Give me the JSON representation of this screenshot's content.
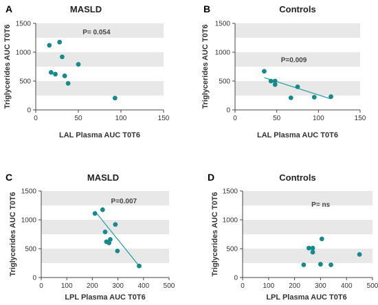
{
  "colors": {
    "point": "#168a8a",
    "fit_line": "#2aa3a3",
    "band": "#e8e8e8"
  },
  "chart_data": [
    {
      "type": "scatter",
      "panel": "A",
      "title": "MASLD",
      "xlabel": "LAL Plasma AUC T0T6",
      "ylabel": "Triglycerides AUC T0T6",
      "xlim": [
        0,
        150
      ],
      "ylim": [
        0,
        1500
      ],
      "xticks": [
        "0",
        "50",
        "100",
        "150"
      ],
      "yticks": [
        "0",
        "500",
        "1000",
        "1500"
      ],
      "bands": [
        [
          250,
          500
        ],
        [
          750,
          1000
        ],
        [
          1250,
          1500
        ]
      ],
      "annotation": "P= 0.054",
      "annotation_at": [
        55,
        1350
      ],
      "points": [
        [
          16,
          1120
        ],
        [
          28,
          1175
        ],
        [
          31,
          920
        ],
        [
          18,
          650
        ],
        [
          23,
          620
        ],
        [
          34,
          590
        ],
        [
          38,
          460
        ],
        [
          50,
          790
        ],
        [
          93,
          205
        ]
      ],
      "fit": null
    },
    {
      "type": "scatter",
      "panel": "B",
      "title": "Controls",
      "xlabel": "LAL Plasma AUC T0T6",
      "ylabel": "Triglycerides AUC T0T6",
      "xlim": [
        0,
        150
      ],
      "ylim": [
        0,
        1500
      ],
      "xticks": [
        "0",
        "50",
        "100",
        "150"
      ],
      "yticks": [
        "0",
        "500",
        "1000",
        "1500"
      ],
      "bands": [
        [
          250,
          500
        ],
        [
          750,
          1000
        ],
        [
          1250,
          1500
        ]
      ],
      "annotation": "P=0.009",
      "annotation_at": [
        55,
        870
      ],
      "points": [
        [
          35,
          670
        ],
        [
          43,
          500
        ],
        [
          48,
          500
        ],
        [
          48,
          440
        ],
        [
          67,
          210
        ],
        [
          75,
          400
        ],
        [
          95,
          220
        ],
        [
          115,
          230
        ]
      ],
      "fit": [
        [
          35,
          560
        ],
        [
          115,
          190
        ]
      ]
    },
    {
      "type": "scatter",
      "panel": "C",
      "title": "MASLD",
      "xlabel": "LPL Plasma AUC T0T6",
      "ylabel": "Triglycerides AUC T0T6",
      "xlim": [
        0,
        500
      ],
      "ylim": [
        0,
        1500
      ],
      "xticks": [
        "0",
        "100",
        "200",
        "300",
        "400",
        "500"
      ],
      "yticks": [
        "0",
        "500",
        "1000",
        "1500"
      ],
      "bands": [
        [
          250,
          500
        ],
        [
          750,
          1000
        ],
        [
          1250,
          1500
        ]
      ],
      "annotation": "P=0.007",
      "annotation_at": [
        273,
        1330
      ],
      "points": [
        [
          210,
          1110
        ],
        [
          240,
          1175
        ],
        [
          250,
          790
        ],
        [
          255,
          620
        ],
        [
          265,
          600
        ],
        [
          270,
          660
        ],
        [
          290,
          920
        ],
        [
          298,
          460
        ],
        [
          383,
          200
        ]
      ],
      "fit": [
        [
          210,
          1150
        ],
        [
          383,
          200
        ]
      ]
    },
    {
      "type": "scatter",
      "panel": "D",
      "title": "Controls",
      "xlabel": "LPL Plasma AUC T0T6",
      "ylabel": "Triglycerides AUC T0T6",
      "xlim": [
        0,
        500
      ],
      "ylim": [
        0,
        1500
      ],
      "xticks": [
        "0",
        "100",
        "200",
        "300",
        "400",
        "500"
      ],
      "yticks": [
        "0",
        "500",
        "1000",
        "1500"
      ],
      "bands": [
        [
          250,
          500
        ],
        [
          750,
          1000
        ],
        [
          1250,
          1500
        ]
      ],
      "annotation": "P= ns",
      "annotation_at": [
        265,
        1270
      ],
      "points": [
        [
          235,
          220
        ],
        [
          255,
          510
        ],
        [
          270,
          510
        ],
        [
          270,
          440
        ],
        [
          300,
          230
        ],
        [
          305,
          670
        ],
        [
          340,
          220
        ],
        [
          450,
          400
        ]
      ],
      "fit": null
    }
  ]
}
